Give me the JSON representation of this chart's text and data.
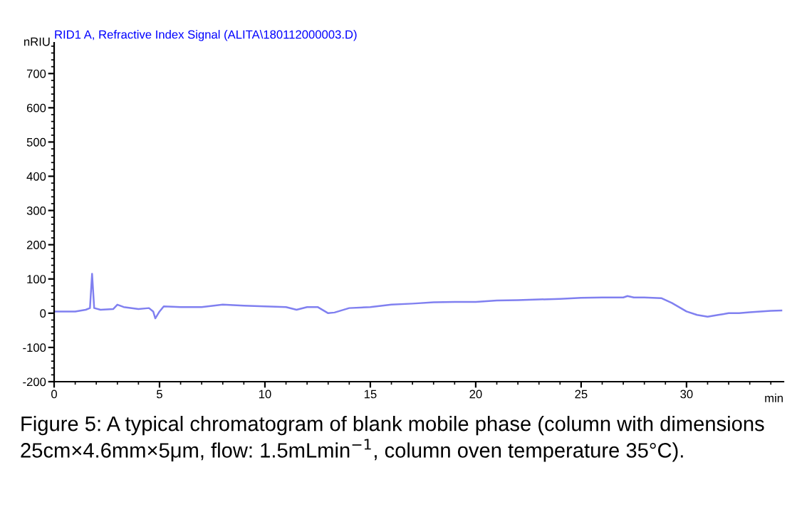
{
  "chart_data": {
    "type": "line",
    "title": "RID1 A, Refractive Index Signal (ALITA\\180112000003.D)",
    "ylabel": "nRIU",
    "xlabel": "min",
    "annotations": [
      "Figure 5: A typical chromatogram of blank mobile phase (column with dimensions 25cm×4.6mm×5μm, flow: 1.5mLmin$^{−1}$, column oven temperature 35°C)."
    ],
    "series": [
      {
        "color": "#8080f0",
        "x": [
          0,
          1,
          1.5,
          1.7,
          1.8,
          1.9,
          2.2,
          2.8,
          3.0,
          3.3,
          4,
          4.5,
          4.7,
          4.8,
          5.0,
          5.2,
          6,
          7,
          8,
          9,
          10,
          11,
          11.5,
          12,
          12.5,
          13,
          13.3,
          14,
          15,
          16,
          17,
          18,
          19,
          20,
          21,
          22,
          23,
          24,
          25,
          26,
          27,
          27.2,
          27.5,
          28,
          28.8,
          29.3,
          30,
          30.5,
          31,
          31.5,
          32,
          32.5,
          33,
          34,
          34.5
        ],
        "values": [
          5,
          5,
          10,
          15,
          115,
          15,
          10,
          12,
          25,
          18,
          12,
          15,
          5,
          -15,
          5,
          20,
          18,
          18,
          25,
          22,
          20,
          18,
          10,
          18,
          18,
          0,
          2,
          15,
          18,
          25,
          28,
          32,
          33,
          33,
          37,
          38,
          40,
          42,
          45,
          46,
          46,
          50,
          46,
          46,
          44,
          30,
          5,
          -5,
          -10,
          -5,
          0,
          0,
          3,
          7,
          8
        ]
      }
    ],
    "xlim": [
      0,
      34.6
    ],
    "xticks": [
      0,
      5,
      10,
      15,
      20,
      25,
      30
    ],
    "ylim": [
      -200,
      790
    ],
    "yticks": [
      -200,
      -100,
      0,
      100,
      200,
      300,
      400,
      500,
      600,
      700
    ],
    "grid": false,
    "legend": false,
    "line_style": "solid",
    "marker": "none"
  }
}
